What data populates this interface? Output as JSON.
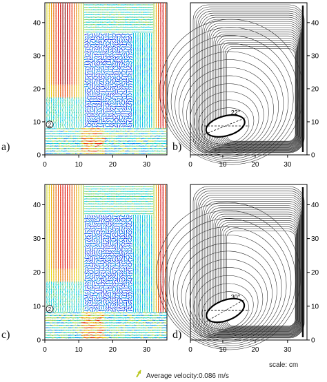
{
  "panels": [
    {
      "id": "a",
      "label": "a)",
      "kind": "vector-field"
    },
    {
      "id": "b",
      "label": "b)",
      "kind": "streamlines",
      "angle_label": "22°",
      "angle_deg": 22
    },
    {
      "id": "c",
      "label": "c)",
      "kind": "vector-field"
    },
    {
      "id": "d",
      "label": "d)",
      "kind": "streamlines",
      "angle_label": "30°",
      "angle_deg": 30
    }
  ],
  "axes": {
    "x_ticks": [
      "0",
      "10",
      "20",
      "30"
    ],
    "y_ticks": [
      "0",
      "10",
      "20",
      "30",
      "40"
    ],
    "x_range": [
      0,
      36
    ],
    "y_range": [
      0,
      46
    ]
  },
  "probe_marker": "2",
  "scale_note": "scale: cm",
  "legend_text": "Average velocity:0.086 m/s",
  "colors": {
    "vector_low": "#2a3fbf",
    "vector_high": "#c8201c",
    "streamline": "#222222",
    "ellipse_fill": "#ffffff"
  }
}
